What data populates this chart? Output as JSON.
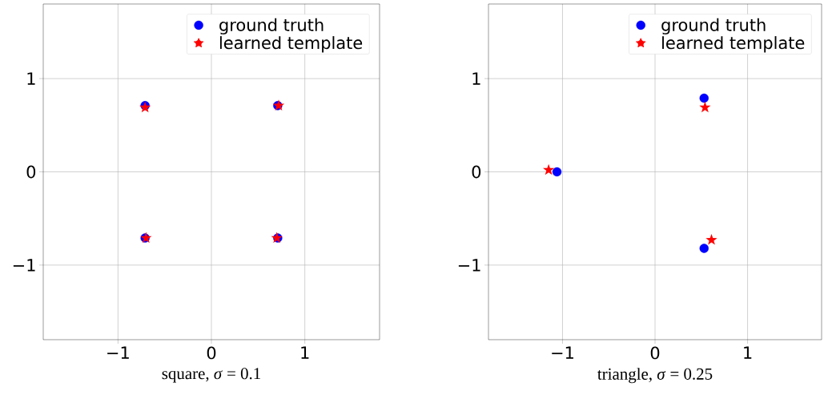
{
  "chart_data": [
    {
      "type": "scatter",
      "xlabel": "square, *σ* = 0.1",
      "xlim": [
        -1.8,
        1.8
      ],
      "ylim": [
        -1.8,
        1.8
      ],
      "xticks": [
        {
          "value": -1,
          "label": "−1"
        },
        0,
        1
      ],
      "yticks": [
        {
          "value": -1,
          "label": "−1"
        },
        0,
        1
      ],
      "grid": true,
      "legend": "top right",
      "series": [
        {
          "name": "ground truth",
          "color": "#0000ff",
          "marker": "circle",
          "x": [
            -0.71,
            0.71,
            -0.71,
            0.71
          ],
          "values": [
            0.71,
            0.71,
            -0.71,
            -0.71
          ]
        },
        {
          "name": "learned template",
          "color": "#ff0000",
          "marker": "star",
          "x": [
            -0.71,
            0.72,
            -0.7,
            0.7
          ],
          "values": [
            0.69,
            0.71,
            -0.71,
            -0.71
          ]
        }
      ]
    },
    {
      "type": "scatter",
      "xlabel": "triangle, *σ* = 0.25",
      "xlim": [
        -1.8,
        1.8
      ],
      "ylim": [
        -1.8,
        1.8
      ],
      "xticks": [
        {
          "value": -1,
          "label": "−1"
        },
        0,
        1
      ],
      "yticks": [
        {
          "value": -1,
          "label": "−1"
        },
        0,
        1
      ],
      "grid": true,
      "legend": "top right",
      "series": [
        {
          "name": "ground truth",
          "color": "#0000ff",
          "marker": "circle",
          "x": [
            -1.06,
            0.53,
            0.53
          ],
          "values": [
            0.0,
            0.79,
            -0.82
          ]
        },
        {
          "name": "learned template",
          "color": "#ff0000",
          "marker": "star",
          "x": [
            -1.15,
            0.54,
            0.61
          ],
          "values": [
            0.02,
            0.69,
            -0.73
          ]
        }
      ]
    }
  ]
}
